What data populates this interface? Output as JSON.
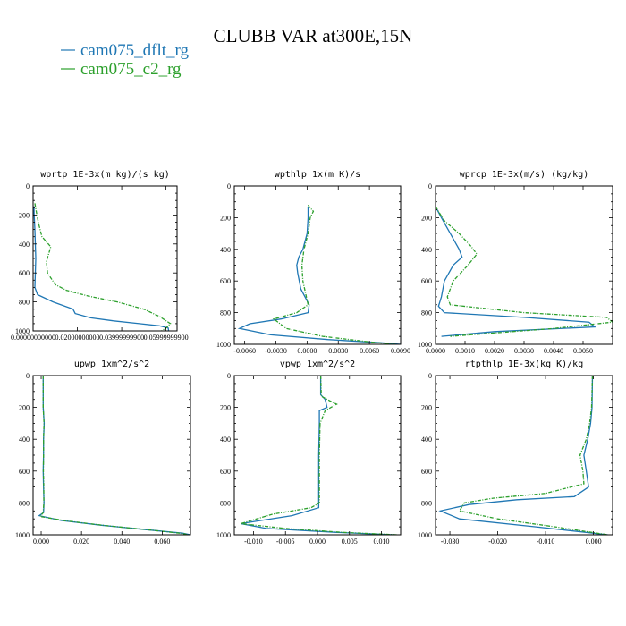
{
  "figure": {
    "title": "CLUBB VAR at300E,15N",
    "legend": [
      {
        "name": "cam075_dflt_rg",
        "color": "#1f77b4"
      },
      {
        "name": "cam075_c2_rg",
        "color": "#2ca02c"
      }
    ]
  },
  "chart_data": [
    {
      "type": "line",
      "title": "wprtp  1E-3x(m kg)/(s kg)",
      "xlim": [
        0,
        0.065
      ],
      "ylim": [
        1000,
        0
      ],
      "xticks": [
        "0.00000000000",
        "0.02000000000",
        "0.03999999900",
        "0.05999999900"
      ],
      "xtick_values": [
        0,
        0.02,
        0.04,
        0.06
      ],
      "yticks": [
        "0",
        "200",
        "400",
        "600",
        "800",
        "1000"
      ],
      "series": [
        {
          "name": "cam075_dflt_rg",
          "color": "#1f77b4",
          "style": "solid",
          "x": [
            0.0004,
            0.0005,
            0.0008,
            0.001,
            0.0012,
            0.001,
            0.0008,
            0.002,
            0.009,
            0.018,
            0.019,
            0.026,
            0.036,
            0.048,
            0.057,
            0.061,
            0.0612
          ],
          "y": [
            140,
            200,
            300,
            400,
            500,
            600,
            700,
            750,
            800,
            850,
            880,
            910,
            930,
            950,
            965,
            980,
            1000
          ]
        },
        {
          "name": "cam075_c2_rg",
          "color": "#2ca02c",
          "style": "dashed",
          "x": [
            0.0008,
            0.0015,
            0.0025,
            0.004,
            0.008,
            0.006,
            0.0065,
            0.01,
            0.015,
            0.025,
            0.038,
            0.05,
            0.057,
            0.062,
            0.06,
            0.058
          ],
          "y": [
            120,
            180,
            260,
            350,
            420,
            520,
            600,
            680,
            720,
            760,
            800,
            850,
            900,
            950,
            980,
            1000
          ]
        }
      ]
    },
    {
      "type": "line",
      "title": "wpthlp  1x(m K)/s",
      "xlim": [
        -0.007,
        0.009
      ],
      "ylim": [
        1000,
        0
      ],
      "xticks": [
        "-0.0060",
        "-0.0030",
        "0.0000",
        "0.0030",
        "0.0060",
        "0.0090"
      ],
      "xtick_values": [
        -0.006,
        -0.003,
        0,
        0.003,
        0.006,
        0.009
      ],
      "yticks": [
        "0",
        "200",
        "400",
        "600",
        "800",
        "1000"
      ],
      "series": [
        {
          "name": "cam075_dflt_rg",
          "color": "#1f77b4",
          "style": "solid",
          "x": [
            0.0001,
            0.0001,
            0.0,
            -0.0004,
            -0.0008,
            -0.001,
            -0.0009,
            -0.0006,
            0.0002,
            0.0001,
            -0.0025,
            -0.0055,
            -0.0065,
            -0.0035,
            0.002,
            0.007,
            0.009
          ],
          "y": [
            130,
            200,
            300,
            400,
            450,
            500,
            550,
            650,
            750,
            800,
            840,
            870,
            900,
            940,
            970,
            990,
            1000
          ]
        },
        {
          "name": "cam075_c2_rg",
          "color": "#2ca02c",
          "style": "dashed",
          "x": [
            0.0001,
            0.0002,
            0.0006,
            0.0003,
            0.0001,
            -0.0003,
            -0.0005,
            -0.0004,
            0.0001,
            -0.001,
            -0.0032,
            -0.002,
            0.0015,
            0.006,
            0.0085
          ],
          "y": [
            120,
            130,
            160,
            200,
            300,
            400,
            500,
            600,
            750,
            800,
            840,
            900,
            950,
            985,
            1000
          ]
        }
      ]
    },
    {
      "type": "line",
      "title": "wprcp  1E-3x(m/s) (kg/kg)",
      "xlim": [
        0,
        0.006
      ],
      "ylim": [
        1000,
        0
      ],
      "xticks": [
        "0.0000",
        "0.0010",
        "0.0020",
        "0.0030",
        "0.0040",
        "0.0050"
      ],
      "xtick_values": [
        0,
        0.001,
        0.002,
        0.003,
        0.004,
        0.005
      ],
      "yticks": [
        "0",
        "200",
        "400",
        "600",
        "800",
        "1000"
      ],
      "series": [
        {
          "name": "cam075_dflt_rg",
          "color": "#1f77b4",
          "style": "solid",
          "x": [
            0.0,
            0.0002,
            0.0005,
            0.0008,
            0.0009,
            0.0006,
            0.0003,
            0.0002,
            0.0001,
            0.0003,
            0.003,
            0.0052,
            0.0054,
            0.002,
            0.0002
          ],
          "y": [
            130,
            200,
            300,
            400,
            450,
            500,
            600,
            700,
            760,
            800,
            830,
            860,
            890,
            920,
            950
          ]
        },
        {
          "name": "cam075_c2_rg",
          "color": "#2ca02c",
          "style": "dashed",
          "x": [
            0.0,
            0.0003,
            0.0008,
            0.0012,
            0.0014,
            0.0011,
            0.0006,
            0.0004,
            0.0005,
            0.003,
            0.0058,
            0.006,
            0.004,
            0.0005
          ],
          "y": [
            130,
            220,
            300,
            380,
            430,
            500,
            600,
            700,
            750,
            800,
            830,
            860,
            900,
            950
          ]
        }
      ]
    },
    {
      "type": "line",
      "title": "upwp  1xm^2/s^2",
      "xlim": [
        -0.004,
        0.074
      ],
      "ylim": [
        1000,
        0
      ],
      "xticks": [
        "0.000",
        "0.020",
        "0.040",
        "0.060"
      ],
      "xtick_values": [
        0,
        0.02,
        0.04,
        0.06
      ],
      "yticks": [
        "0",
        "200",
        "400",
        "600",
        "800",
        "1000"
      ],
      "series": [
        {
          "name": "cam075_dflt_rg",
          "color": "#1f77b4",
          "style": "solid",
          "x": [
            0.001,
            0.001,
            0.0015,
            0.0012,
            0.0012,
            0.001,
            0.0012,
            0.0014,
            0.0012,
            -0.001,
            0.01,
            0.03,
            0.05,
            0.07,
            0.074
          ],
          "y": [
            0,
            200,
            300,
            400,
            500,
            600,
            700,
            800,
            860,
            880,
            910,
            940,
            965,
            990,
            1000
          ]
        },
        {
          "name": "cam075_c2_rg",
          "color": "#2ca02c",
          "style": "dashed",
          "x": [
            0.001,
            0.001,
            0.0014,
            0.0012,
            0.0012,
            0.0011,
            0.0013,
            0.0013,
            0.001,
            -0.0005,
            0.012,
            0.032,
            0.052,
            0.07,
            0.073
          ],
          "y": [
            0,
            200,
            300,
            400,
            500,
            600,
            700,
            800,
            860,
            885,
            912,
            942,
            967,
            992,
            1000
          ]
        }
      ]
    },
    {
      "type": "line",
      "title": "vpwp  1xm^2/s^2",
      "xlim": [
        -0.013,
        0.013
      ],
      "ylim": [
        1000,
        0
      ],
      "xticks": [
        "-0.010",
        "-0.005",
        "0.000",
        "0.005",
        "0.010"
      ],
      "xtick_values": [
        -0.01,
        -0.005,
        0,
        0.005,
        0.01
      ],
      "yticks": [
        "0",
        "200",
        "400",
        "600",
        "800",
        "1000"
      ],
      "series": [
        {
          "name": "cam075_dflt_rg",
          "color": "#1f77b4",
          "style": "solid",
          "x": [
            0.0005,
            0.0005,
            0.0012,
            0.0015,
            0.0003,
            0.0003,
            0.0002,
            0.0002,
            0.0002,
            0.0002,
            -0.004,
            -0.012,
            -0.008,
            0.003,
            0.012
          ],
          "y": [
            0,
            120,
            150,
            200,
            220,
            300,
            500,
            700,
            800,
            830,
            880,
            930,
            960,
            985,
            1000
          ]
        },
        {
          "name": "cam075_c2_rg",
          "color": "#2ca02c",
          "style": "dashed",
          "x": [
            0.0005,
            0.0006,
            0.002,
            0.003,
            0.0012,
            0.0004,
            0.0003,
            0.0003,
            0.0003,
            -0.001,
            -0.007,
            -0.012,
            -0.005,
            0.004,
            0.0125
          ],
          "y": [
            0,
            130,
            160,
            180,
            220,
            300,
            500,
            700,
            800,
            830,
            870,
            930,
            960,
            985,
            1000
          ]
        }
      ]
    },
    {
      "type": "line",
      "title": "rtpthlp  1E-3x(kg K)/kg",
      "xlim": [
        -0.033,
        0.004
      ],
      "ylim": [
        1000,
        0
      ],
      "xticks": [
        "-0.030",
        "-0.020",
        "-0.010",
        "0.000"
      ],
      "xtick_values": [
        -0.03,
        -0.02,
        -0.01,
        0
      ],
      "yticks": [
        "0",
        "200",
        "400",
        "600",
        "800",
        "1000"
      ],
      "series": [
        {
          "name": "cam075_dflt_rg",
          "color": "#1f77b4",
          "style": "solid",
          "x": [
            -0.0002,
            -0.0003,
            -0.0006,
            -0.0012,
            -0.002,
            -0.0015,
            -0.001,
            -0.004,
            -0.016,
            -0.026,
            -0.032,
            -0.028,
            -0.012,
            0.003
          ],
          "y": [
            0,
            200,
            300,
            400,
            500,
            600,
            700,
            760,
            780,
            810,
            850,
            900,
            950,
            1000
          ]
        },
        {
          "name": "cam075_c2_rg",
          "color": "#2ca02c",
          "style": "dashed",
          "x": [
            -0.0002,
            -0.0004,
            -0.0008,
            -0.0015,
            -0.0028,
            -0.0022,
            -0.002,
            -0.01,
            -0.021,
            -0.027,
            -0.028,
            -0.02,
            -0.008,
            0.003
          ],
          "y": [
            0,
            200,
            300,
            400,
            500,
            600,
            680,
            740,
            770,
            800,
            850,
            900,
            950,
            1000
          ]
        }
      ]
    }
  ]
}
